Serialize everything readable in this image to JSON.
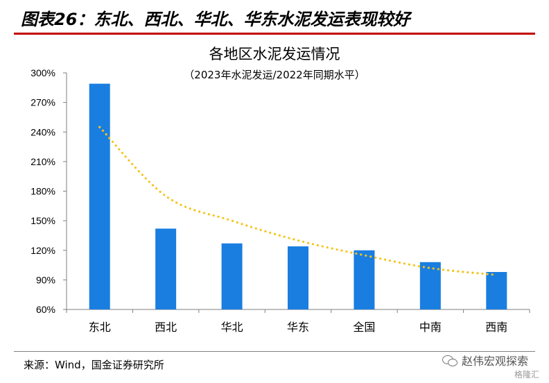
{
  "header": {
    "title": "图表26：东北、西北、华北、华东水泥发运表现较好"
  },
  "footer": {
    "source": "来源：Wind，国金证券研究所",
    "watermark": "赵伟宏观探索",
    "watermark2": "格隆汇"
  },
  "chart_data": {
    "type": "bar",
    "title": "各地区水泥发运情况",
    "subtitle": "（2023年水泥发运/2022年同期水平）",
    "categories": [
      "东北",
      "西北",
      "华北",
      "华东",
      "全国",
      "中南",
      "西南"
    ],
    "values": [
      289,
      142,
      127,
      124,
      120,
      108,
      98
    ],
    "trendline": [
      245,
      175,
      150,
      130,
      115,
      102,
      95
    ],
    "ylim": [
      60,
      300
    ],
    "yticks": [
      "60%",
      "90%",
      "120%",
      "150%",
      "180%",
      "210%",
      "240%",
      "270%",
      "300%"
    ],
    "grid": false,
    "colors": {
      "bar": "#1a7ee0",
      "trend": "#f5c41a",
      "axis": "#7f7f7f"
    }
  }
}
